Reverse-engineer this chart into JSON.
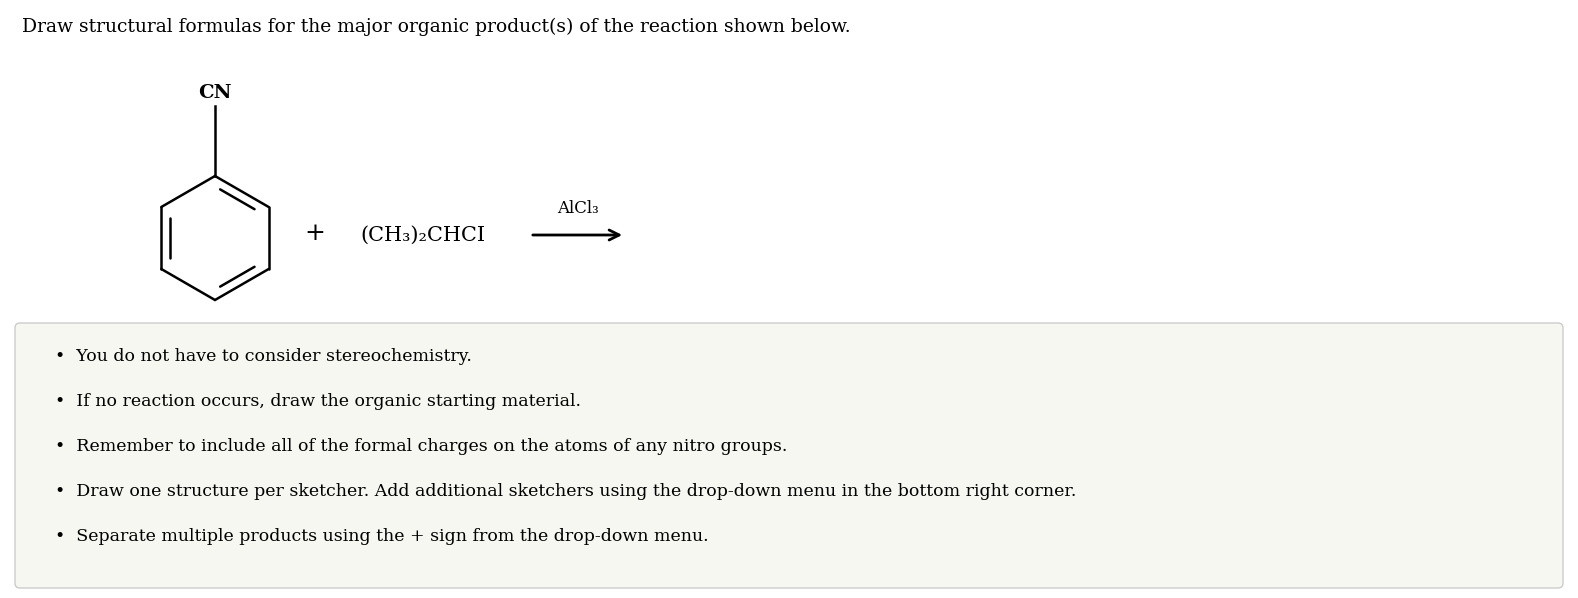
{
  "title": "Draw structural formulas for the major organic product(s) of the reaction shown below.",
  "title_fontsize": 13.5,
  "title_color": "#000000",
  "background_color": "#ffffff",
  "box_background": "#f7f7f2",
  "box_edge_color": "#cccccc",
  "bullet_points": [
    "You do not have to consider stereochemistry.",
    "If no reaction occurs, draw the organic starting material.",
    "Remember to include all of the formal charges on the atoms of any nitro groups.",
    "Draw one structure per sketcher. Add additional sketchers using the drop-down menu in the bottom right corner.",
    "Separate multiple products using the + sign from the drop-down menu."
  ],
  "bullet_fontsize": 12.5,
  "cn_label": "CN",
  "alcl3_label": "AlCl₃",
  "reagent_label": "+ (CH₃)₂CHCI"
}
